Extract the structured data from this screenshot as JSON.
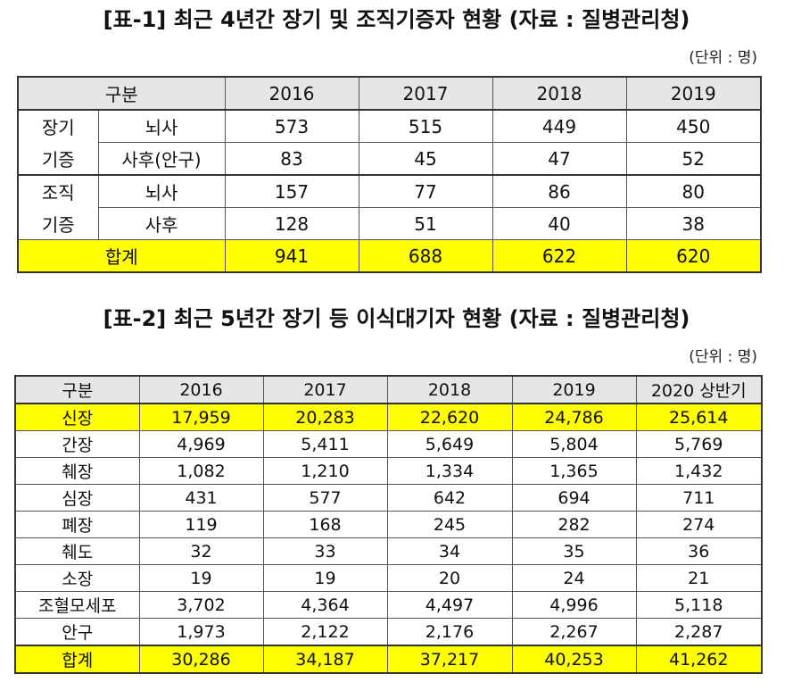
{
  "table1": {
    "title": "[표-1] 최근 4년간 장기 및 조직기증자 현황 (자료 : 질병관리청)",
    "unit": "(단위 : 명)",
    "header": {
      "category": "구분",
      "years": [
        "2016",
        "2017",
        "2018",
        "2019"
      ]
    },
    "groups": [
      {
        "label_line1": "장기",
        "label_line2": "기증",
        "rows": [
          {
            "sub": "뇌사",
            "values": [
              "573",
              "515",
              "449",
              "450"
            ]
          },
          {
            "sub": "사후(안구)",
            "values": [
              "83",
              "45",
              "47",
              "52"
            ]
          }
        ]
      },
      {
        "label_line1": "조직",
        "label_line2": "기증",
        "rows": [
          {
            "sub": "뇌사",
            "values": [
              "157",
              "77",
              "86",
              "80"
            ]
          },
          {
            "sub": "사후",
            "values": [
              "128",
              "51",
              "40",
              "38"
            ]
          }
        ]
      }
    ],
    "total": {
      "label": "합계",
      "values": [
        "941",
        "688",
        "622",
        "620"
      ]
    }
  },
  "table2": {
    "title": "[표-2] 최근 5년간 장기 등 이식대기자 현황 (자료 : 질병관리청)",
    "unit": "(단위 : 명)",
    "header": {
      "category": "구분",
      "years": [
        "2016",
        "2017",
        "2018",
        "2019",
        "2020 상반기"
      ]
    },
    "rows": [
      {
        "label": "신장",
        "values": [
          "17,959",
          "20,283",
          "22,620",
          "24,786",
          "25,614"
        ]
      },
      {
        "label": "간장",
        "values": [
          "4,969",
          "5,411",
          "5,649",
          "5,804",
          "5,769"
        ]
      },
      {
        "label": "췌장",
        "values": [
          "1,082",
          "1,210",
          "1,334",
          "1,365",
          "1,432"
        ]
      },
      {
        "label": "심장",
        "values": [
          "431",
          "577",
          "642",
          "694",
          "711"
        ]
      },
      {
        "label": "폐장",
        "values": [
          "119",
          "168",
          "245",
          "282",
          "274"
        ]
      },
      {
        "label": "췌도",
        "values": [
          "32",
          "33",
          "34",
          "35",
          "36"
        ]
      },
      {
        "label": "소장",
        "values": [
          "19",
          "19",
          "20",
          "24",
          "21"
        ]
      },
      {
        "label": "조혈모세포",
        "values": [
          "3,702",
          "4,364",
          "4,497",
          "4,996",
          "5,118"
        ]
      },
      {
        "label": "안구",
        "values": [
          "1,973",
          "2,122",
          "2,176",
          "2,267",
          "2,287"
        ]
      }
    ],
    "total": {
      "label": "합계",
      "values": [
        "30,286",
        "34,187",
        "37,217",
        "40,253",
        "41,262"
      ]
    }
  },
  "colors": {
    "highlight": "#ffff00",
    "header_bg": "#e6e6e6"
  }
}
